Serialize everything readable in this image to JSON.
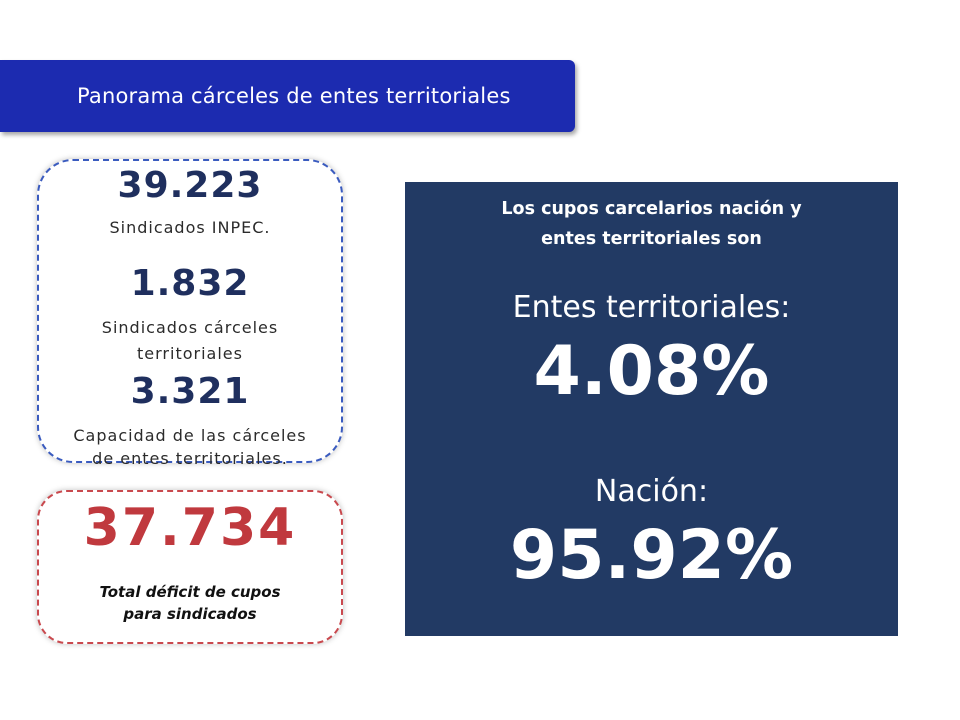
{
  "banner": {
    "title": "Panorama cárceles de entes territoriales"
  },
  "stats": [
    {
      "value": "39.223",
      "label_lines": [
        "Sindicados INPEC."
      ]
    },
    {
      "value": "1.832",
      "label_lines": [
        "Sindicados cárceles",
        "territoriales"
      ]
    },
    {
      "value": "3.321",
      "label_lines": [
        "Capacidad de las cárceles",
        "de entes territoriales."
      ]
    }
  ],
  "deficit": {
    "value": "37.734",
    "label_lines": [
      "Total déficit de cupos",
      "para sindicados"
    ]
  },
  "panel": {
    "heading_lines": [
      "Los cupos carcelarios nación y",
      "entes territoriales son"
    ],
    "territorial_label": "Entes territoriales:",
    "territorial_value": "4.08%",
    "nacion_label": "Nación:",
    "nacion_value": "95.92%"
  },
  "colors": {
    "banner": "#1c2bb0",
    "panel": "#223a64",
    "stats_border": "#3a5bbf",
    "deficit_border": "#c9494e",
    "deficit_number": "#c0393e",
    "stat_number": "#1f2f5e"
  }
}
